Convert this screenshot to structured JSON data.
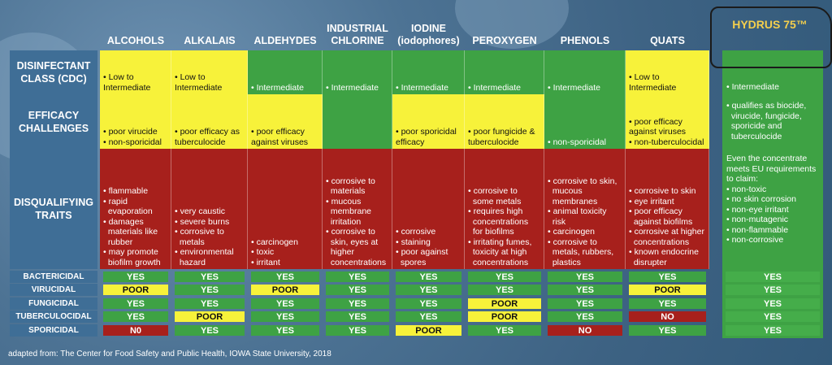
{
  "columns": [
    "ALCOHOLS",
    "ALKALAIS",
    "ALDEHYDES",
    "INDUSTRIAL\nCHLORINE",
    "IODINE\n(iodophores)",
    "PEROXYGEN",
    "PHENOLS",
    "QUATS"
  ],
  "row_labels": {
    "class": "DISINFECTANT\nCLASS (CDC)",
    "efficacy": "EFFICACY\nCHALLENGES",
    "traits": "DISQUALIFYING\nTRAITS",
    "bactericidal": "BACTERICIDAL",
    "virucidal": "VIRUCIDAL",
    "fungicidal": "FUNGICIDAL",
    "tuberculocidal": "TUBERCULOCIDAL",
    "sporicidal": "SPORICIDAL"
  },
  "class_row": [
    {
      "color": "yellow",
      "lines": [
        "• Low to",
        "Intermediate"
      ]
    },
    {
      "color": "yellow",
      "lines": [
        "• Low to",
        "Intermediate"
      ]
    },
    {
      "color": "green",
      "lines": [
        "• Intermediate"
      ]
    },
    {
      "color": "green",
      "lines": [
        "• Intermediate"
      ]
    },
    {
      "color": "green",
      "lines": [
        "• Intermediate"
      ]
    },
    {
      "color": "green",
      "lines": [
        "• Intermediate"
      ]
    },
    {
      "color": "green",
      "lines": [
        "• Intermediate"
      ]
    },
    {
      "color": "yellow",
      "lines": [
        "• Low to",
        "Intermediate"
      ]
    }
  ],
  "efficacy_row": [
    {
      "color": "yellow",
      "lines": [
        "• poor virucide",
        "• non-sporicidal"
      ]
    },
    {
      "color": "yellow",
      "lines": [
        "• poor efficacy as",
        "tuberculocide"
      ]
    },
    {
      "color": "yellow",
      "lines": [
        "• poor efficacy",
        "against viruses"
      ]
    },
    {
      "color": "green",
      "lines": []
    },
    {
      "color": "yellow",
      "lines": [
        "• poor sporicidal",
        "efficacy"
      ]
    },
    {
      "color": "yellow",
      "lines": [
        "• poor fungicide &",
        "tuberculocide"
      ]
    },
    {
      "color": "green",
      "lines": [
        "• non-sporicidal"
      ]
    },
    {
      "color": "yellow",
      "lines": [
        "• poor efficacy",
        "against viruses",
        "• non-tuberculocidal"
      ]
    }
  ],
  "traits_row": [
    {
      "color": "red",
      "lines": [
        "• flammable",
        "• rapid",
        "  evaporation",
        "• damages",
        "  materials like",
        "  rubber",
        "• may promote",
        "  biofilm growth"
      ]
    },
    {
      "color": "red",
      "lines": [
        "• very caustic",
        "• severe burns",
        "• corrosive to",
        "  metals",
        "• environmental",
        "  hazard"
      ]
    },
    {
      "color": "red",
      "lines": [
        "• carcinogen",
        "• toxic",
        "• irritant"
      ]
    },
    {
      "color": "red",
      "lines": [
        "• corrosive to",
        "  materials",
        "• mucous",
        "  membrane",
        "  irritation",
        "• corrosive to",
        "  skin, eyes at",
        "  higher",
        "  concentrations"
      ]
    },
    {
      "color": "red",
      "lines": [
        "• corrosive",
        "• staining",
        "• poor against",
        "  spores"
      ]
    },
    {
      "color": "red",
      "lines": [
        "• corrosive to",
        "  some metals",
        "• requires high",
        "  concentrations",
        "  for biofilms",
        "• irritating fumes,",
        "  toxicity at high",
        "  concentrations"
      ]
    },
    {
      "color": "red",
      "lines": [
        "• corrosive to skin,",
        "  mucous",
        "  membranes",
        "• animal toxicity",
        "  risk",
        "• carcinogen",
        "• corrosive to",
        "  metals, rubbers,",
        "  plastics"
      ]
    },
    {
      "color": "red",
      "lines": [
        "• corrosive to skin",
        "• eye irritant",
        "• poor efficacy",
        "  against biofilms",
        "• corrosive at higher",
        "  concentrations",
        "• known endocrine",
        "  disrupter"
      ]
    }
  ],
  "grid": {
    "bactericidal": [
      [
        "YES",
        "green"
      ],
      [
        "YES",
        "green"
      ],
      [
        "YES",
        "green"
      ],
      [
        "YES",
        "green"
      ],
      [
        "YES",
        "green"
      ],
      [
        "YES",
        "green"
      ],
      [
        "YES",
        "green"
      ],
      [
        "YES",
        "green"
      ]
    ],
    "virucidal": [
      [
        "POOR",
        "yellow"
      ],
      [
        "YES",
        "green"
      ],
      [
        "POOR",
        "yellow"
      ],
      [
        "YES",
        "green"
      ],
      [
        "YES",
        "green"
      ],
      [
        "YES",
        "green"
      ],
      [
        "YES",
        "green"
      ],
      [
        "POOR",
        "yellow"
      ]
    ],
    "fungicidal": [
      [
        "YES",
        "green"
      ],
      [
        "YES",
        "green"
      ],
      [
        "YES",
        "green"
      ],
      [
        "YES",
        "green"
      ],
      [
        "YES",
        "green"
      ],
      [
        "POOR",
        "yellow"
      ],
      [
        "YES",
        "green"
      ],
      [
        "YES",
        "green"
      ]
    ],
    "tuberculocidal": [
      [
        "YES",
        "green"
      ],
      [
        "POOR",
        "yellow"
      ],
      [
        "YES",
        "green"
      ],
      [
        "YES",
        "green"
      ],
      [
        "YES",
        "green"
      ],
      [
        "POOR",
        "yellow"
      ],
      [
        "YES",
        "green"
      ],
      [
        "NO",
        "red"
      ]
    ],
    "sporicidal": [
      [
        "N0",
        "red"
      ],
      [
        "YES",
        "green"
      ],
      [
        "YES",
        "green"
      ],
      [
        "YES",
        "green"
      ],
      [
        "POOR",
        "yellow"
      ],
      [
        "YES",
        "green"
      ],
      [
        "NO",
        "red"
      ],
      [
        "YES",
        "green"
      ]
    ]
  },
  "hydrus": {
    "title": "HYDRUS 75™",
    "class": "• Intermediate",
    "efficacy": [
      "• qualifies as biocide,",
      "  virucide, fungicide,",
      "  sporicide and",
      "  tuberculocide"
    ],
    "traits": [
      "Even the concentrate",
      "meets EU requirements",
      "to claim:",
      "• non-toxic",
      "• no skin corrosion",
      "• non-eye irritant",
      "• non-mutagenic",
      "• non-flammable",
      "• non-corrosive"
    ],
    "grid": [
      "YES",
      "YES",
      "YES",
      "YES",
      "YES"
    ]
  },
  "footer": "adapted from: The Center for Food Safety and Public Health, IOWA State University, 2018",
  "colors": {
    "green": "#3ea244",
    "yellow": "#f7f23a",
    "red": "#a7201c",
    "label_blue": "#3f6e96",
    "title_gold": "#f4cf4d"
  }
}
